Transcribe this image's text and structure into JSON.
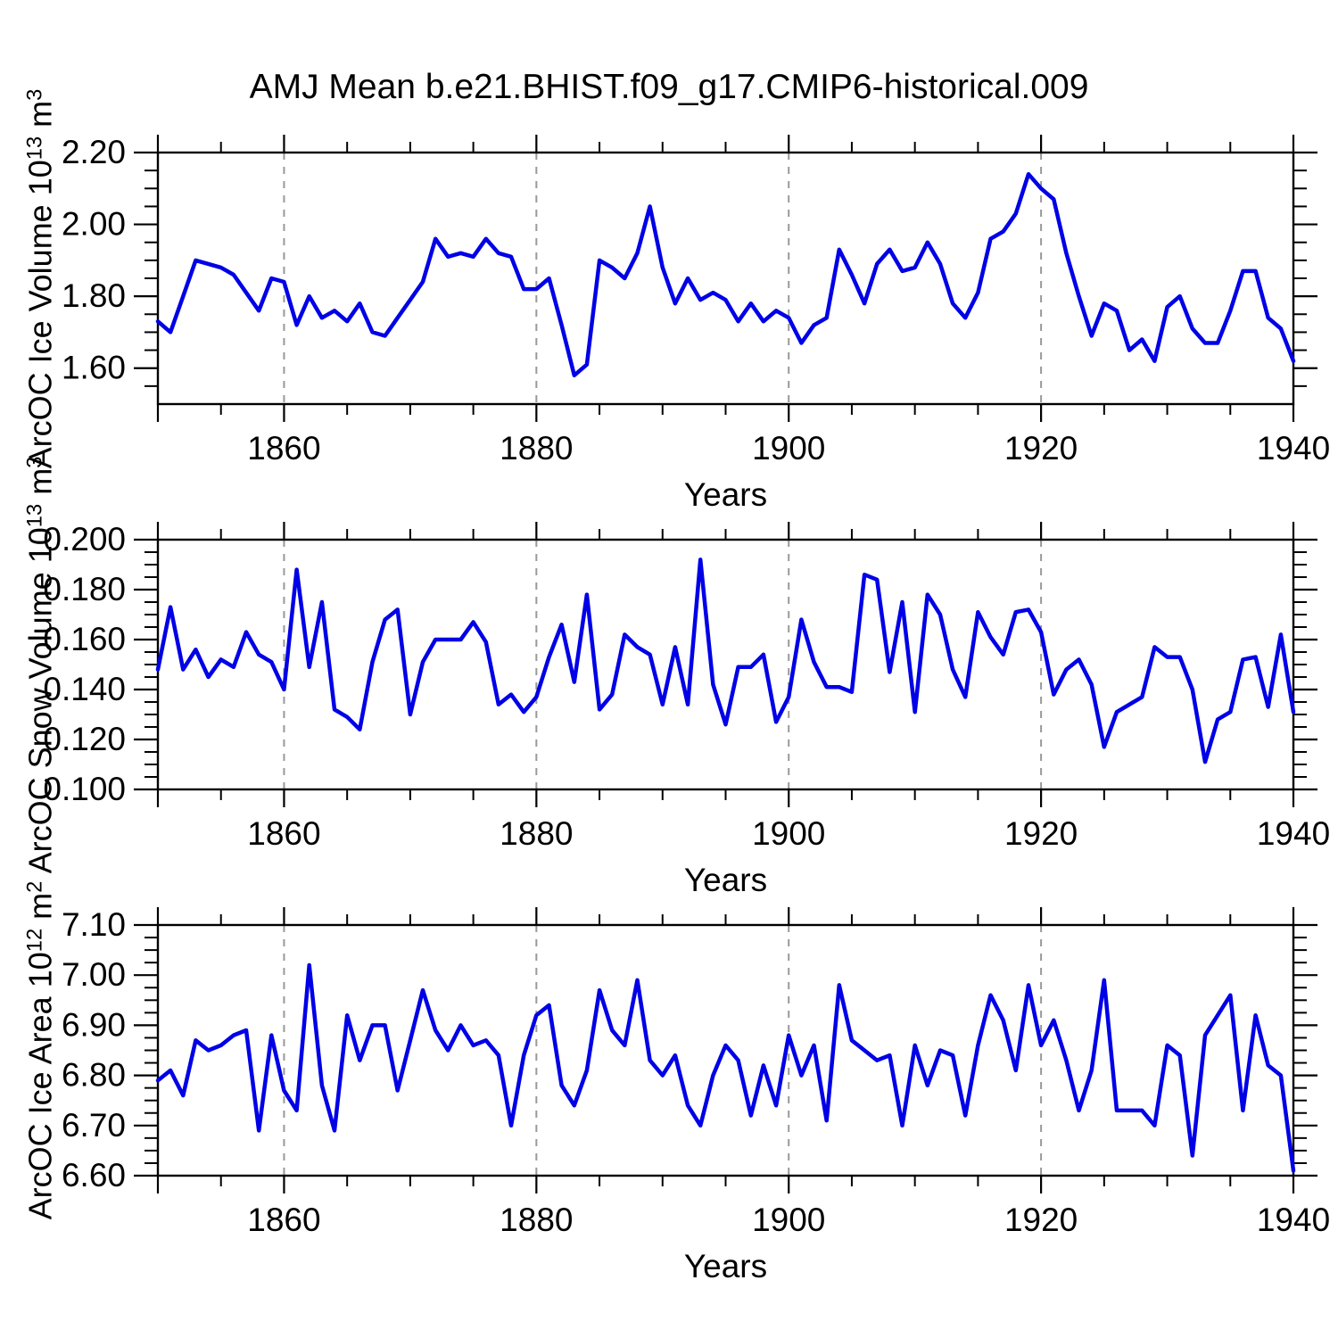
{
  "title": "AMJ Mean b.e21.BHIST.f09_g17.CMIP6-historical.009",
  "line_color": "#0000e6",
  "gridline_color": "#999999",
  "chart_data": {
    "type": "line",
    "x_label": "Years",
    "x_range": [
      1850,
      1940
    ],
    "x_major_ticks": [
      1860,
      1880,
      1900,
      1920,
      1940
    ],
    "x_major_tick_labels": [
      "1860",
      "1880",
      "1900",
      "1920",
      "1940"
    ],
    "x_minor_step": 5,
    "x_gridlines": [
      1860,
      1880,
      1900,
      1920
    ],
    "grid_style": "dashed-vertical",
    "legend": "none",
    "years": [
      1850,
      1851,
      1852,
      1853,
      1854,
      1855,
      1856,
      1857,
      1858,
      1859,
      1860,
      1861,
      1862,
      1863,
      1864,
      1865,
      1866,
      1867,
      1868,
      1869,
      1870,
      1871,
      1872,
      1873,
      1874,
      1875,
      1876,
      1877,
      1878,
      1879,
      1880,
      1881,
      1882,
      1883,
      1884,
      1885,
      1886,
      1887,
      1888,
      1889,
      1890,
      1891,
      1892,
      1893,
      1894,
      1895,
      1896,
      1897,
      1898,
      1899,
      1900,
      1901,
      1902,
      1903,
      1904,
      1905,
      1906,
      1907,
      1908,
      1909,
      1910,
      1911,
      1912,
      1913,
      1914,
      1915,
      1916,
      1917,
      1918,
      1919,
      1920,
      1921,
      1922,
      1923,
      1924,
      1925,
      1926,
      1927,
      1928,
      1929,
      1930,
      1931,
      1932,
      1933,
      1934,
      1935,
      1936,
      1937,
      1938,
      1939,
      1940
    ],
    "panels": [
      {
        "name": "arcoc-ice-volume",
        "ylabel_text": "ArcOC Ice Volume 10^13 m^3",
        "ylabel_segments": [
          {
            "t": "ArcOC Ice Volume 10"
          },
          {
            "t": "13",
            "sup": true
          },
          {
            "t": " m"
          },
          {
            "t": "3",
            "sup": true
          }
        ],
        "ylim": [
          1.5,
          2.2
        ],
        "ytick_values": [
          2.2,
          2.0,
          1.8,
          1.6
        ],
        "ytick_labels": [
          "2.20",
          "2.00",
          "1.80",
          "1.60"
        ],
        "y_minor_step": 0.05,
        "values": [
          1.73,
          1.7,
          1.8,
          1.9,
          1.89,
          1.88,
          1.86,
          1.81,
          1.76,
          1.85,
          1.84,
          1.72,
          1.8,
          1.74,
          1.76,
          1.73,
          1.78,
          1.7,
          1.69,
          1.74,
          1.79,
          1.84,
          1.96,
          1.91,
          1.92,
          1.91,
          1.96,
          1.92,
          1.91,
          1.82,
          1.82,
          1.85,
          1.72,
          1.58,
          1.61,
          1.9,
          1.88,
          1.85,
          1.92,
          2.05,
          1.88,
          1.78,
          1.85,
          1.79,
          1.81,
          1.79,
          1.73,
          1.78,
          1.73,
          1.76,
          1.74,
          1.67,
          1.72,
          1.74,
          1.93,
          1.86,
          1.78,
          1.89,
          1.93,
          1.87,
          1.88,
          1.95,
          1.89,
          1.78,
          1.74,
          1.81,
          1.96,
          1.98,
          2.03,
          2.14,
          2.1,
          2.07,
          1.92,
          1.8,
          1.69,
          1.78,
          1.76,
          1.65,
          1.68,
          1.62,
          1.77,
          1.8,
          1.71,
          1.67,
          1.67,
          1.76,
          1.87,
          1.87,
          1.74,
          1.71,
          1.62
        ]
      },
      {
        "name": "arcoc-snow-volume",
        "ylabel_text": "ArcOC Snow Volume 10^13 m^3",
        "ylabel_segments": [
          {
            "t": "ArcOC Snow Volume 10"
          },
          {
            "t": "13",
            "sup": true
          },
          {
            "t": " m"
          },
          {
            "t": "3",
            "sup": true
          }
        ],
        "ylim": [
          0.1,
          0.2
        ],
        "ytick_values": [
          0.2,
          0.18,
          0.16,
          0.14,
          0.12,
          0.1
        ],
        "ytick_labels": [
          "0.200",
          "0.180",
          "0.160",
          "0.140",
          "0.120",
          "0.100"
        ],
        "y_minor_step": 0.005,
        "values": [
          0.148,
          0.173,
          0.148,
          0.156,
          0.145,
          0.152,
          0.149,
          0.163,
          0.154,
          0.151,
          0.14,
          0.188,
          0.149,
          0.175,
          0.132,
          0.129,
          0.124,
          0.151,
          0.168,
          0.172,
          0.13,
          0.151,
          0.16,
          0.16,
          0.16,
          0.167,
          0.159,
          0.134,
          0.138,
          0.131,
          0.137,
          0.153,
          0.166,
          0.143,
          0.178,
          0.132,
          0.138,
          0.162,
          0.157,
          0.154,
          0.134,
          0.157,
          0.134,
          0.192,
          0.142,
          0.126,
          0.149,
          0.149,
          0.154,
          0.127,
          0.137,
          0.168,
          0.151,
          0.141,
          0.141,
          0.139,
          0.186,
          0.184,
          0.147,
          0.175,
          0.131,
          0.178,
          0.17,
          0.148,
          0.137,
          0.171,
          0.161,
          0.154,
          0.171,
          0.172,
          0.163,
          0.138,
          0.148,
          0.152,
          0.142,
          0.117,
          0.131,
          0.134,
          0.137,
          0.157,
          0.153,
          0.153,
          0.14,
          0.111,
          0.128,
          0.131,
          0.152,
          0.153,
          0.133,
          0.162,
          0.131
        ]
      },
      {
        "name": "arcoc-ice-area",
        "ylabel_text": "ArcOC Ice Area 10^12 m^2",
        "ylabel_segments": [
          {
            "t": "ArcOC Ice Area 10"
          },
          {
            "t": "12",
            "sup": true
          },
          {
            "t": " m"
          },
          {
            "t": "2",
            "sup": true
          }
        ],
        "ylim": [
          6.6,
          7.1
        ],
        "ytick_values": [
          7.1,
          7.0,
          6.9,
          6.8,
          6.7,
          6.6
        ],
        "ytick_labels": [
          "7.10",
          "7.00",
          "6.90",
          "6.80",
          "6.70",
          "6.60"
        ],
        "y_minor_step": 0.025,
        "values": [
          6.79,
          6.81,
          6.76,
          6.87,
          6.85,
          6.86,
          6.88,
          6.89,
          6.69,
          6.88,
          6.77,
          6.73,
          7.02,
          6.78,
          6.69,
          6.92,
          6.83,
          6.9,
          6.9,
          6.77,
          6.87,
          6.97,
          6.89,
          6.85,
          6.9,
          6.86,
          6.87,
          6.84,
          6.7,
          6.84,
          6.92,
          6.94,
          6.78,
          6.74,
          6.81,
          6.97,
          6.89,
          6.86,
          6.99,
          6.83,
          6.8,
          6.84,
          6.74,
          6.7,
          6.8,
          6.86,
          6.83,
          6.72,
          6.82,
          6.74,
          6.88,
          6.8,
          6.86,
          6.71,
          6.98,
          6.87,
          6.85,
          6.83,
          6.84,
          6.7,
          6.86,
          6.78,
          6.85,
          6.84,
          6.72,
          6.86,
          6.96,
          6.91,
          6.81,
          6.98,
          6.86,
          6.91,
          6.83,
          6.73,
          6.81,
          6.99,
          6.73,
          6.73,
          6.73,
          6.7,
          6.86,
          6.84,
          6.64,
          6.88,
          6.92,
          6.96,
          6.73,
          6.92,
          6.82,
          6.8,
          6.61
        ]
      }
    ]
  }
}
